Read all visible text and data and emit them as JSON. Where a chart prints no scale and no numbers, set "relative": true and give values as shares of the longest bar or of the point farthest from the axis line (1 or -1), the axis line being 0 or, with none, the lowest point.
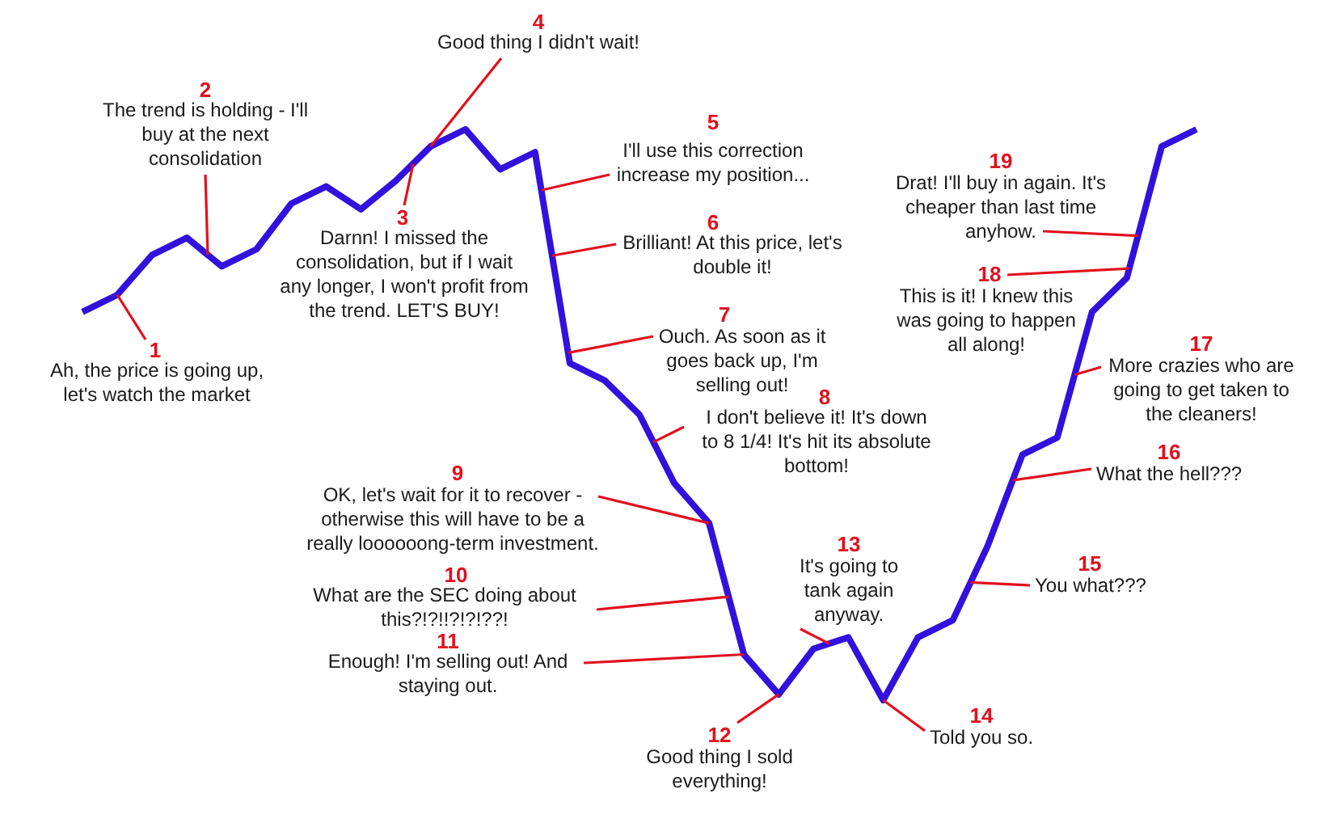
{
  "chart_data": {
    "type": "line",
    "relative": true,
    "marker": "none",
    "line_style": "solid",
    "color": "#3311dd",
    "categories": [
      null,
      null,
      null,
      null,
      null,
      null,
      null,
      null,
      null,
      null,
      null,
      null,
      null,
      null,
      null,
      null,
      null,
      null,
      null,
      null,
      null,
      null,
      null,
      null,
      null,
      null,
      null,
      null,
      null,
      null,
      null,
      null,
      null
    ],
    "values": [
      0.68,
      0.71,
      0.78,
      0.81,
      0.76,
      0.79,
      0.87,
      0.9,
      0.86,
      0.91,
      0.97,
      1,
      0.93,
      0.96,
      0.59,
      0.56,
      0.5,
      0.38,
      0.31,
      0.08,
      0.01,
      0.09,
      0.11,
      0,
      0.11,
      0.14,
      0.27,
      0.43,
      0.46,
      0.68,
      0.74,
      0.97,
      1
    ],
    "annotations": [
      "1",
      "Ah, the price is going up, let's watch the market",
      "2",
      "The trend is holding - I'll buy at the next consolidation",
      "3",
      "Darnn! I missed the consolidation, but if I wait any longer, I won't profit from the trend. LET'S BUY!",
      "4",
      "Good thing I didn't wait!",
      "5",
      "I'll use this correction increase my position...",
      "6",
      "Brilliant! At this price, let's double it!",
      "7",
      "Ouch. As soon as it goes back up, I'm selling out!",
      "8",
      "I don't believe it! It's down to 8 1/4! It's hit its absolute bottom!",
      "9",
      "OK, let's wait for it to recover - otherwise this will have to be a really loooooong-term investment.",
      "10",
      "What are the SEC doing about this?!?!!?!?!??!",
      "11",
      "Enough! I'm selling out! And staying out.",
      "12",
      "Good thing I sold everything!",
      "13",
      "It's going to tank again anyway.",
      "14",
      "Told you so.",
      "15",
      "You what???",
      "16",
      "What the hell???",
      "17",
      "More crazies who are going to get taken to the cleaners!",
      "18",
      "This is it! I knew this was going to happen all along!",
      "19",
      "Drat! I'll buy in again. It's cheaper than last time anyhow."
    ]
  }
}
